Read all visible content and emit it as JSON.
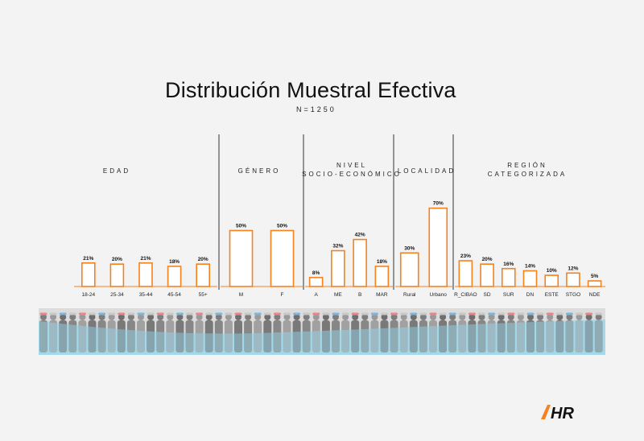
{
  "title": "Distribución Muestral Efectiva",
  "subtitle": "N=1250",
  "colors": {
    "bar_stroke": "#f5821f",
    "bar_fill": "#ffffff",
    "divider": "#333333",
    "band": "#9fd8ea"
  },
  "logo": {
    "text": "HR",
    "name": "hr-logo"
  },
  "chart_data": [
    {
      "type": "bar",
      "title": "EDAD",
      "categories": [
        "18-24",
        "25-34",
        "35-44",
        "45-54",
        "55+"
      ],
      "values": [
        21,
        20,
        21,
        18,
        20
      ],
      "labels": [
        "21%",
        "20%",
        "21%",
        "18%",
        "20%"
      ],
      "ylim": [
        0,
        75
      ]
    },
    {
      "type": "bar",
      "title": "GÉNERO",
      "categories": [
        "M",
        "F"
      ],
      "values": [
        50,
        50
      ],
      "labels": [
        "50%",
        "50%"
      ],
      "ylim": [
        0,
        75
      ]
    },
    {
      "type": "bar",
      "title": [
        "NIVEL",
        "SOCIO-ECONÓMICO"
      ],
      "categories": [
        "A",
        "ME",
        "B",
        "MAR"
      ],
      "values": [
        8,
        32,
        42,
        18
      ],
      "labels": [
        "8%",
        "32%",
        "42%",
        "18%"
      ],
      "ylim": [
        0,
        75
      ]
    },
    {
      "type": "bar",
      "title": "LOCALIDAD",
      "categories": [
        "Rural",
        "Urbano"
      ],
      "values": [
        30,
        70
      ],
      "labels": [
        "30%",
        "70%"
      ],
      "ylim": [
        0,
        75
      ]
    },
    {
      "type": "bar",
      "title": [
        "REGIÓN",
        "CATEGORIZADA"
      ],
      "categories": [
        "R_CIBAO",
        "SD",
        "SUR",
        "DN",
        "ESTE",
        "STGO",
        "NDE"
      ],
      "values": [
        23,
        20,
        16,
        14,
        10,
        12,
        5
      ],
      "labels": [
        "23%",
        "20%",
        "16%",
        "14%",
        "10%",
        "12%",
        "5%"
      ],
      "ylim": [
        0,
        75
      ]
    }
  ]
}
